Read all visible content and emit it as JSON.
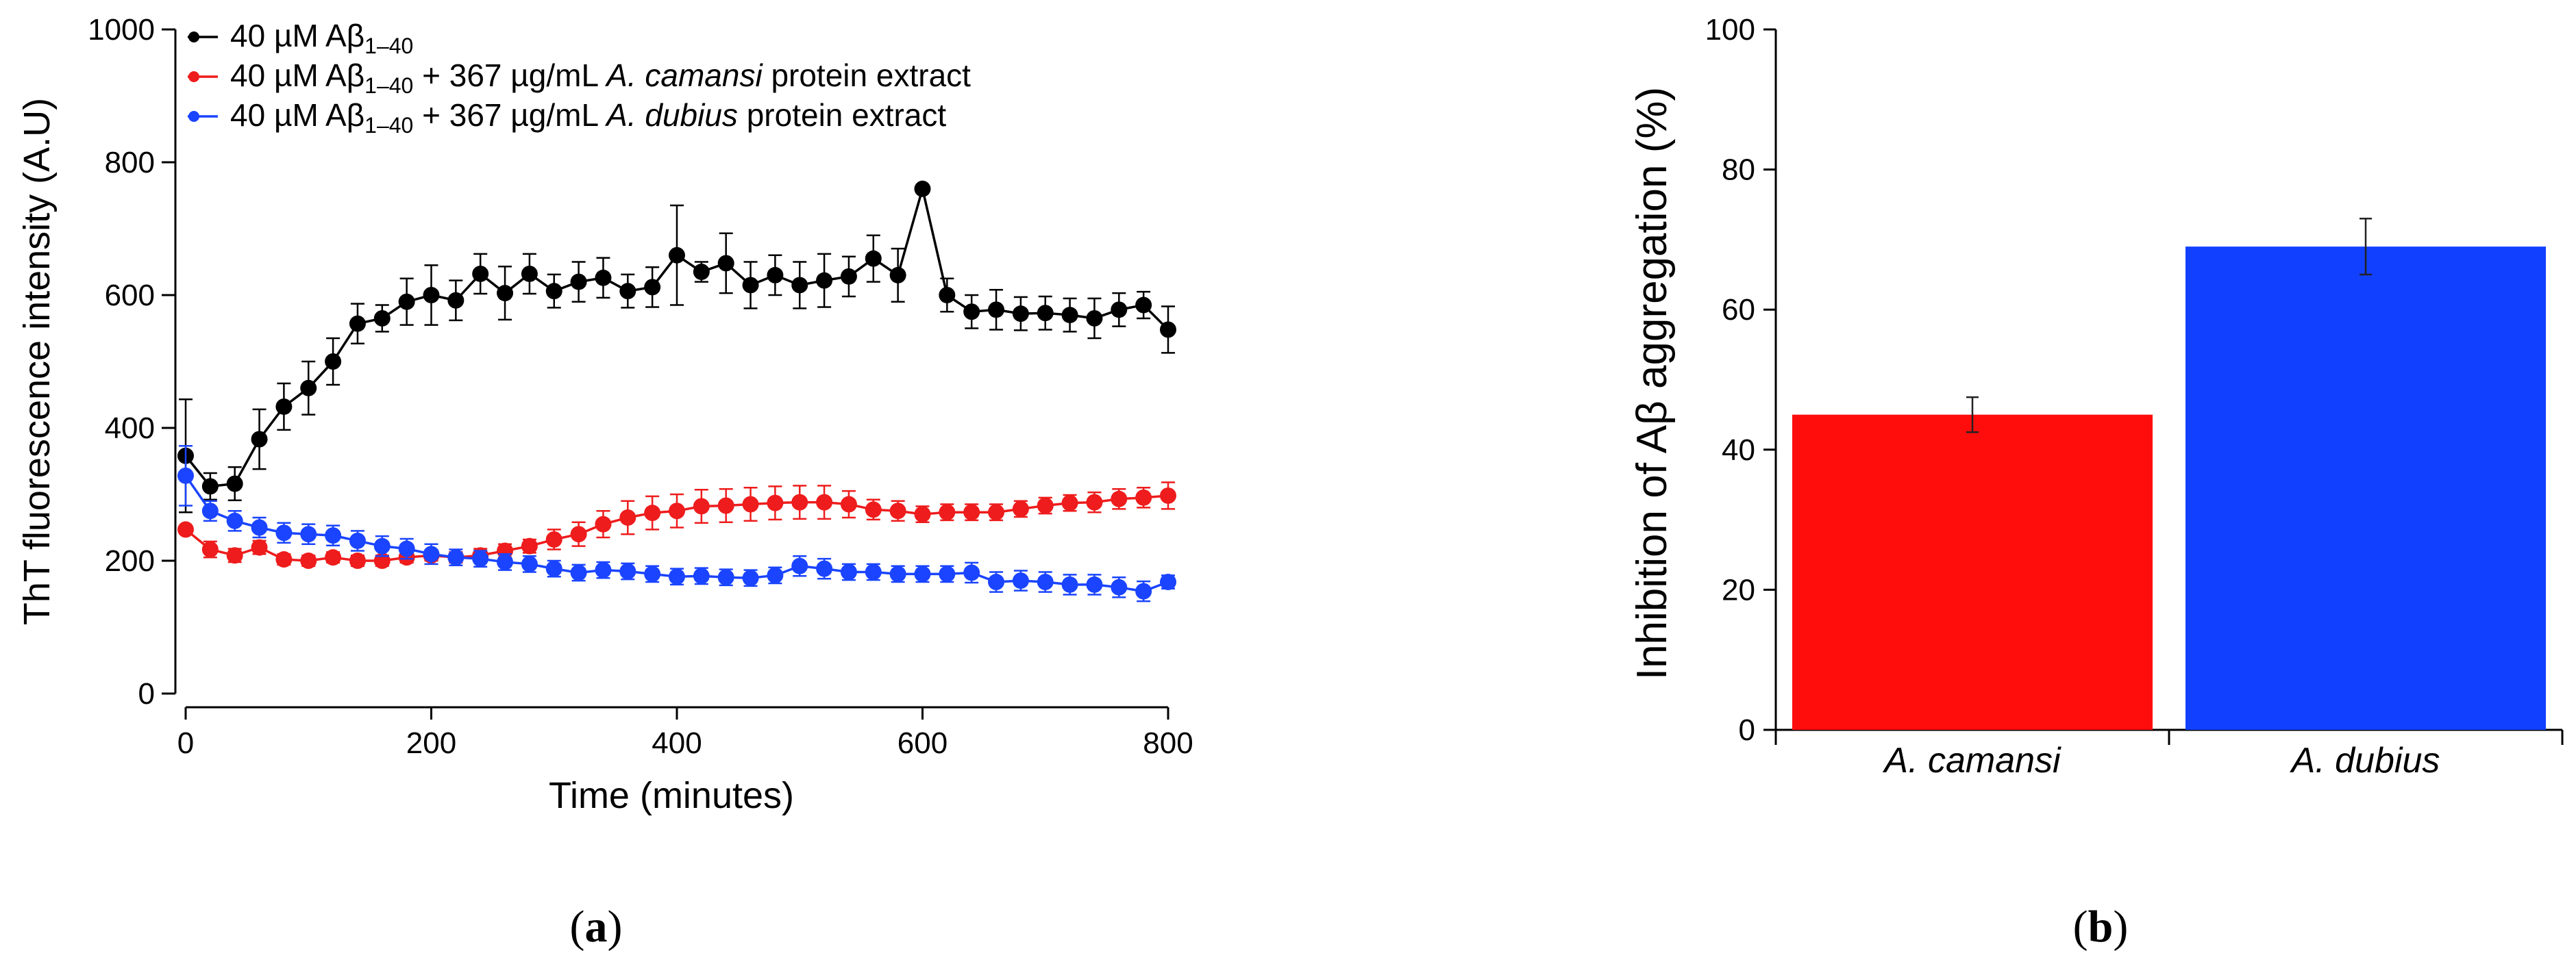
{
  "chart_data": [
    {
      "type": "line",
      "panel_label_open": "(",
      "panel_label_letter": "a",
      "panel_label_close": ")",
      "xlabel": "Time (minutes)",
      "ylabel": "ThT fluorescence intensity (A.U)",
      "xlim": [
        0,
        800
      ],
      "ylim": [
        0,
        1000
      ],
      "xticks": [
        "0",
        "200",
        "400",
        "600",
        "800"
      ],
      "yticks": [
        "0",
        "200",
        "400",
        "600",
        "800",
        "1000"
      ],
      "x": [
        0,
        20,
        40,
        60,
        80,
        100,
        120,
        140,
        160,
        180,
        200,
        220,
        240,
        260,
        280,
        300,
        320,
        340,
        360,
        380,
        400,
        420,
        440,
        460,
        480,
        500,
        520,
        540,
        560,
        580,
        600,
        620,
        640,
        660,
        680,
        700,
        720,
        740,
        760,
        780,
        800
      ],
      "legend_position": "top-left",
      "series": [
        {
          "name": "40 µM Aβ1–40",
          "legend_parts": {
            "pre": "40 µM Aβ",
            "sub": "1–40",
            "mid": "",
            "species": "",
            "post": ""
          },
          "color": "#000000",
          "values": [
            358,
            312,
            316,
            383,
            432,
            460,
            500,
            557,
            565,
            590,
            600,
            592,
            632,
            603,
            632,
            606,
            620,
            626,
            606,
            612,
            660,
            635,
            648,
            615,
            630,
            615,
            622,
            628,
            655,
            630,
            760,
            600,
            575,
            578,
            572,
            573,
            570,
            565,
            578,
            585,
            548
          ],
          "errors": [
            85,
            20,
            25,
            45,
            35,
            40,
            35,
            30,
            20,
            35,
            45,
            30,
            30,
            40,
            30,
            25,
            30,
            30,
            25,
            30,
            75,
            15,
            45,
            35,
            30,
            35,
            40,
            30,
            35,
            40,
            0,
            25,
            25,
            30,
            25,
            25,
            25,
            30,
            25,
            20,
            35
          ]
        },
        {
          "name": "40 µM Aβ1–40 + 367 µg/mL A. camansi protein extract",
          "legend_parts": {
            "pre": "40 µM Aβ",
            "sub": "1–40",
            "mid": " + 367 µg/mL ",
            "species": "A. camansi",
            "post": " protein extract"
          },
          "color": "#ee1c1c",
          "values": [
            247,
            217,
            208,
            220,
            202,
            200,
            205,
            200,
            200,
            205,
            208,
            205,
            208,
            215,
            222,
            232,
            240,
            255,
            265,
            272,
            275,
            282,
            283,
            285,
            287,
            288,
            288,
            285,
            277,
            275,
            270,
            273,
            273,
            273,
            278,
            283,
            287,
            288,
            293,
            295,
            298
          ],
          "errors": [
            0,
            12,
            10,
            10,
            8,
            8,
            8,
            8,
            8,
            8,
            8,
            8,
            10,
            10,
            10,
            15,
            18,
            20,
            25,
            25,
            25,
            25,
            25,
            25,
            25,
            25,
            25,
            20,
            15,
            15,
            12,
            12,
            12,
            12,
            12,
            12,
            12,
            15,
            15,
            15,
            20
          ]
        },
        {
          "name": "40 µM Aβ1–40 + 367 µg/mL A. dubius protein extract",
          "legend_parts": {
            "pre": "40 µM Aβ",
            "sub": "1–40",
            "mid": " + 367 µg/mL ",
            "species": "A. dubius",
            "post": " protein extract"
          },
          "color": "#1a44ff",
          "values": [
            328,
            275,
            260,
            250,
            242,
            240,
            238,
            230,
            222,
            218,
            210,
            205,
            203,
            198,
            195,
            188,
            182,
            186,
            184,
            180,
            176,
            177,
            175,
            174,
            178,
            192,
            188,
            183,
            183,
            180,
            180,
            180,
            182,
            168,
            170,
            168,
            164,
            164,
            160,
            154,
            168
          ],
          "errors": [
            45,
            15,
            15,
            15,
            15,
            15,
            15,
            15,
            15,
            15,
            15,
            12,
            12,
            12,
            12,
            12,
            12,
            12,
            12,
            12,
            12,
            12,
            12,
            12,
            12,
            15,
            15,
            12,
            12,
            12,
            12,
            12,
            15,
            15,
            15,
            15,
            15,
            15,
            15,
            15,
            10
          ]
        }
      ]
    },
    {
      "type": "bar",
      "panel_label_open": "(",
      "panel_label_letter": "b",
      "panel_label_close": ")",
      "ylabel": "Inhibition of Aβ aggregation (%)",
      "ylim": [
        0,
        100
      ],
      "yticks": [
        "0",
        "20",
        "40",
        "60",
        "80",
        "100"
      ],
      "categories": [
        "A. camansi",
        "A. dubius"
      ],
      "values": [
        45,
        69
      ],
      "errors": [
        2.5,
        4
      ],
      "colors": [
        "#ff0d0d",
        "#1240ff"
      ]
    }
  ]
}
